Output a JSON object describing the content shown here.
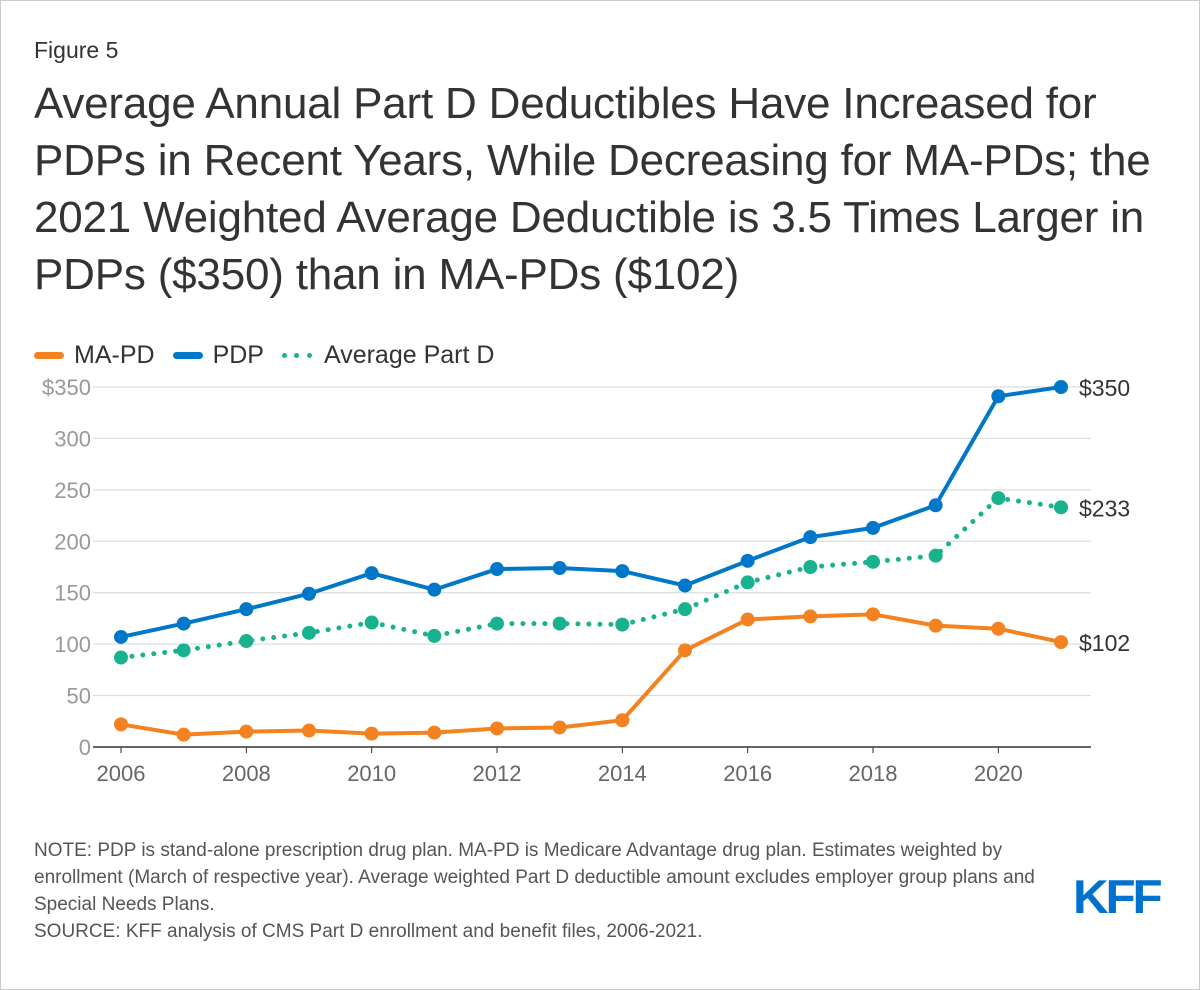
{
  "figure_label": "Figure 5",
  "title": "Average Annual Part D Deductibles Have Increased for PDPs in Recent Years, While Decreasing for MA-PDs; the 2021 Weighted Average Deductible is 3.5 Times Larger in PDPs ($350) than in MA-PDs ($102)",
  "legend": [
    {
      "label": "MA-PD",
      "color": "#f58220",
      "style": "solid"
    },
    {
      "label": "PDP",
      "color": "#0077c8",
      "style": "solid"
    },
    {
      "label": "Average Part D",
      "color": "#19b28e",
      "style": "dotted"
    }
  ],
  "chart_data": {
    "type": "line",
    "x": [
      2006,
      2007,
      2008,
      2009,
      2010,
      2011,
      2012,
      2013,
      2014,
      2015,
      2016,
      2017,
      2018,
      2019,
      2020,
      2021
    ],
    "series": [
      {
        "name": "MA-PD",
        "color": "#f58220",
        "style": "solid",
        "values": [
          22,
          12,
          15,
          16,
          13,
          14,
          18,
          19,
          26,
          94,
          124,
          127,
          129,
          118,
          115,
          102
        ]
      },
      {
        "name": "PDP",
        "color": "#0077c8",
        "style": "solid",
        "values": [
          107,
          120,
          134,
          149,
          169,
          153,
          173,
          174,
          171,
          157,
          181,
          204,
          213,
          235,
          341,
          350
        ]
      },
      {
        "name": "Average Part D",
        "color": "#19b28e",
        "style": "dotted",
        "values": [
          87,
          94,
          103,
          111,
          121,
          108,
          120,
          120,
          119,
          134,
          160,
          175,
          180,
          186,
          242,
          233
        ]
      }
    ],
    "end_labels": [
      "$102",
      "$350",
      "$233"
    ],
    "ylim": [
      0,
      350
    ],
    "yticks": [
      0,
      50,
      100,
      150,
      200,
      250,
      300,
      350
    ],
    "ytick_labels": [
      "0",
      "50",
      "100",
      "150",
      "200",
      "250",
      "300",
      "$350"
    ],
    "xticks": [
      2006,
      2008,
      2010,
      2012,
      2014,
      2016,
      2018,
      2020
    ],
    "xtick_labels": [
      "2006",
      "2008",
      "2010",
      "2012",
      "2014",
      "2016",
      "2018",
      "2020"
    ],
    "grid": true,
    "title": "",
    "xlabel": "",
    "ylabel": ""
  },
  "notes": [
    "NOTE: PDP is stand-alone prescription drug plan. MA-PD is Medicare Advantage drug plan. Estimates weighted by enrollment (March of respective year). Average weighted Part D deductible amount excludes employer group plans and Special Needs Plans.",
    "SOURCE: KFF analysis of CMS Part D enrollment and benefit files, 2006-2021."
  ],
  "logo_text": "KFF"
}
